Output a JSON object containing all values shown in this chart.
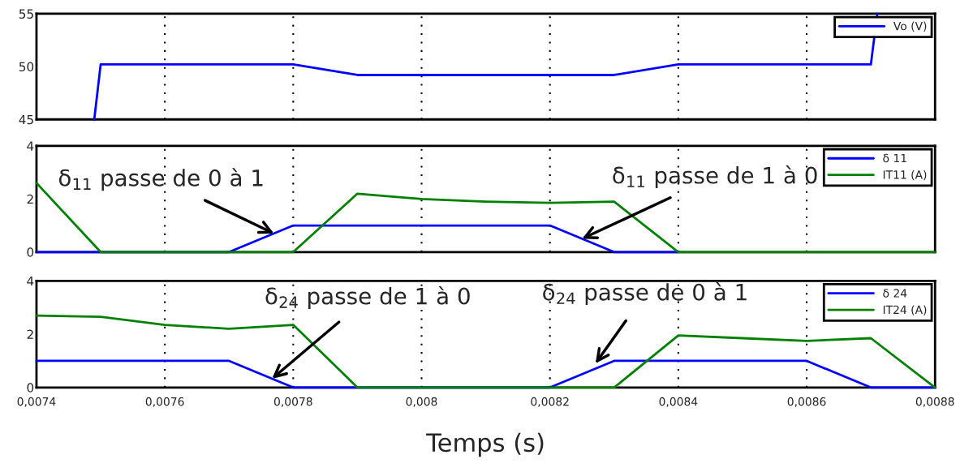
{
  "chart_data": [
    {
      "type": "line",
      "xlim": [
        0.0074,
        0.0088
      ],
      "ylim": [
        45,
        55
      ],
      "yticks": [
        45,
        50,
        55
      ],
      "xticks": [
        {
          "value": 0.0074,
          "label": null
        },
        {
          "value": 0.0076,
          "label": null
        },
        {
          "value": 0.0078,
          "label": null
        },
        {
          "value": 0.008,
          "label": null
        },
        {
          "value": 0.0082,
          "label": null
        },
        {
          "value": 0.0084,
          "label": null
        },
        {
          "value": 0.0086,
          "label": null
        },
        {
          "value": 0.0088,
          "label": null
        }
      ],
      "tick_labels": "y",
      "grid": "x",
      "legend": "top right",
      "series": [
        {
          "name": "Vo (V)",
          "color": "#0000ff",
          "x": [
            0.00749,
            0.0075,
            0.0078,
            0.0079,
            0.0083,
            0.0084,
            0.0087,
            0.00871
          ],
          "values": [
            45,
            50.2,
            50.2,
            49.2,
            49.2,
            50.2,
            50.2,
            55
          ]
        }
      ]
    },
    {
      "type": "line",
      "xlim": [
        0.0074,
        0.0088
      ],
      "ylim": [
        0,
        4
      ],
      "yticks": [
        0,
        2,
        4
      ],
      "xticks": [
        {
          "value": 0.0074,
          "label": null
        },
        {
          "value": 0.0076,
          "label": null
        },
        {
          "value": 0.0078,
          "label": null
        },
        {
          "value": 0.008,
          "label": null
        },
        {
          "value": 0.0082,
          "label": null
        },
        {
          "value": 0.0084,
          "label": null
        },
        {
          "value": 0.0086,
          "label": null
        },
        {
          "value": 0.0088,
          "label": null
        }
      ],
      "tick_labels": "y",
      "grid": "x",
      "legend": "top right",
      "x": [
        0.0074,
        0.0075,
        0.0076,
        0.0077,
        0.0078,
        0.0079,
        0.008,
        0.0081,
        0.0082,
        0.0083,
        0.0084,
        0.0085,
        0.0086,
        0.0087,
        0.0088
      ],
      "series": [
        {
          "name": "δ 11",
          "color": "#0000ff",
          "values": [
            0,
            0,
            null,
            0,
            1,
            1,
            1,
            1,
            1,
            0,
            0,
            null,
            null,
            null,
            null
          ]
        },
        {
          "name": "IT11 (A)",
          "color": "#008000",
          "values": [
            2.6,
            0,
            0,
            0,
            0,
            2.2,
            2.0,
            1.9,
            1.85,
            1.9,
            0,
            0,
            0,
            0,
            0
          ]
        }
      ],
      "annotations": [
        {
          "text": "δ$_{11}$ passe de 0 à 1",
          "x": 0.00777,
          "y": 0.7
        },
        {
          "text": "δ$_{11}$ passe de 1 à 0",
          "x": 0.00825,
          "y": 0.5
        }
      ]
    },
    {
      "type": "line",
      "xlim": [
        0.0074,
        0.0088
      ],
      "ylim": [
        0,
        4
      ],
      "yticks": [
        0,
        2,
        4
      ],
      "xticks": [
        {
          "value": 0.0074,
          "label": "0,0074"
        },
        {
          "value": 0.0076,
          "label": "0,0076"
        },
        {
          "value": 0.0078,
          "label": "0,0078"
        },
        {
          "value": 0.008,
          "label": "0,008"
        },
        {
          "value": 0.0082,
          "label": "0,0082"
        },
        {
          "value": 0.0084,
          "label": "0,0084"
        },
        {
          "value": 0.0086,
          "label": "0,0086"
        },
        {
          "value": 0.0088,
          "label": "0,0088"
        }
      ],
      "grid": "x",
      "legend": "top right",
      "xlabel": "Temps (s)",
      "x": [
        0.0074,
        0.0075,
        0.0076,
        0.0077,
        0.0078,
        0.0079,
        0.008,
        0.0081,
        0.0082,
        0.0083,
        0.0084,
        0.0085,
        0.0086,
        0.0087,
        0.0088
      ],
      "series": [
        {
          "name": "δ 24",
          "color": "#0000ff",
          "values": [
            1,
            1,
            1,
            1,
            0,
            0,
            0,
            0,
            0,
            1,
            1,
            1,
            1,
            0,
            0
          ]
        },
        {
          "name": "IT24 (A)",
          "color": "#008000",
          "values": [
            2.7,
            2.65,
            2.35,
            2.2,
            2.35,
            0,
            0,
            0,
            0,
            0,
            1.95,
            1.85,
            1.75,
            1.85,
            0
          ]
        }
      ],
      "annotations": [
        {
          "text": "δ$_{24}$ passe de 1 à 0",
          "x": 0.007767,
          "y": 0.33
        },
        {
          "text": "δ$_{24}$ passe de 0 à 1",
          "x": 0.008271,
          "y": 0.9
        }
      ]
    }
  ]
}
